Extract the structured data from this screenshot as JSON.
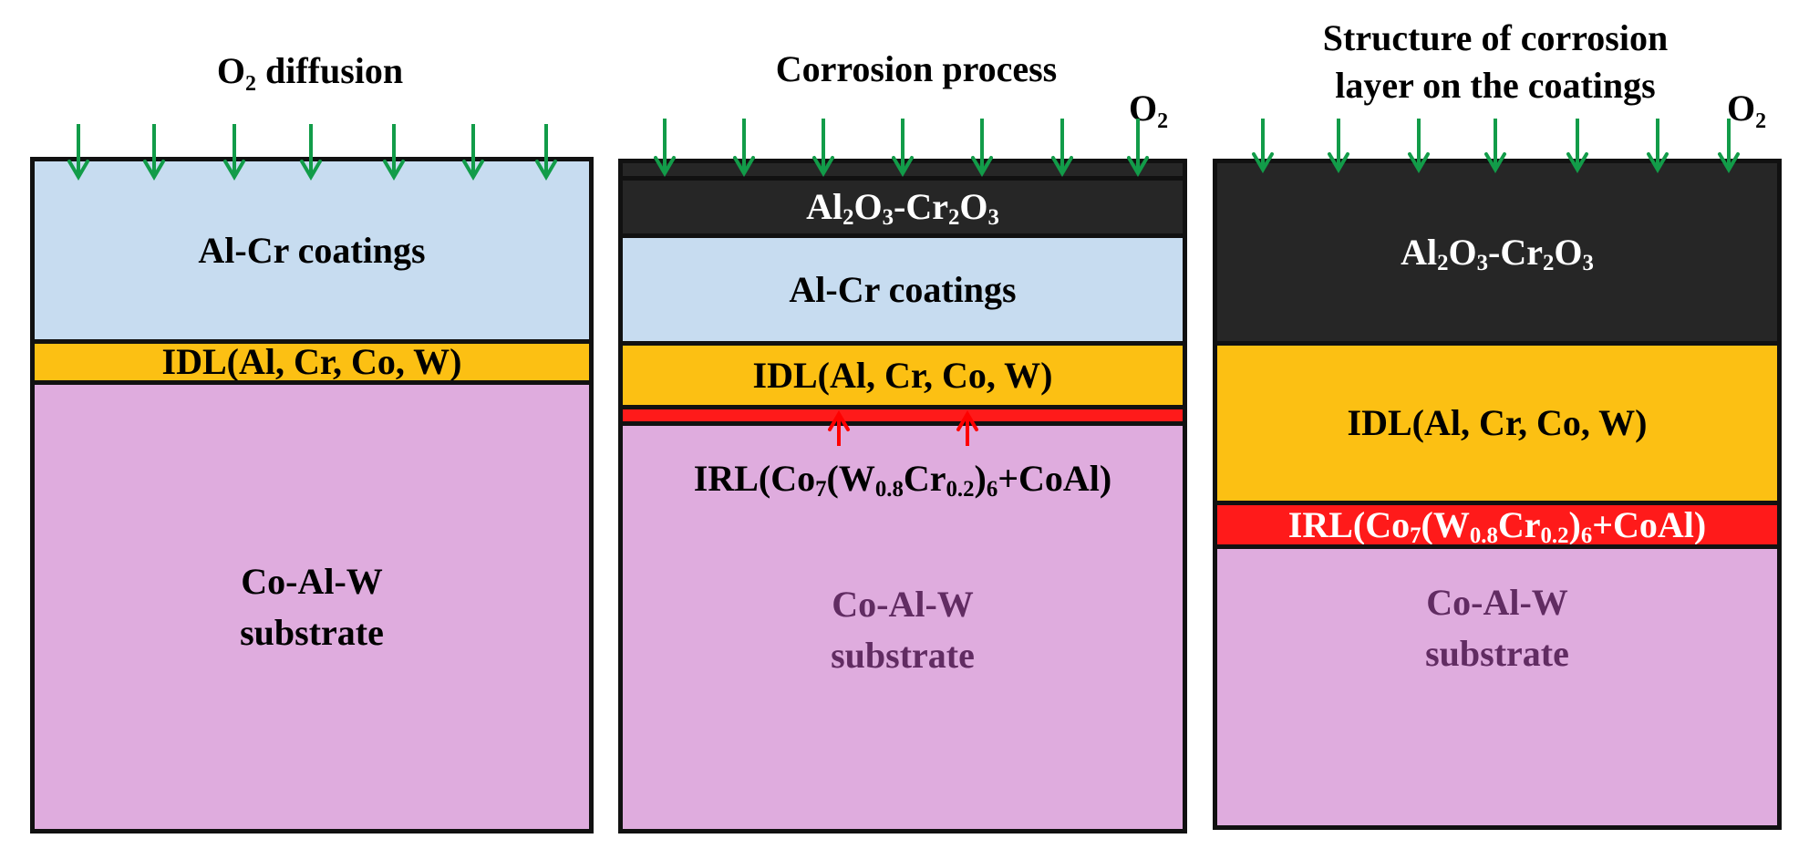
{
  "arrow_colors": {
    "oxygen": "#129c49",
    "diffusion": "#ff0000"
  },
  "panels": [
    {
      "title": "O₂ diffusion",
      "coating_label": "Al-Cr coatings",
      "idl_label": "IDL(Al, Cr, Co, W)",
      "substrate_line1": "Co-Al-W",
      "substrate_line2": "substrate"
    },
    {
      "title": "Corrosion process",
      "o2_label": "O₂",
      "oxide_label": "Al₂O₃-Cr₂O₃",
      "coating_label": "Al-Cr coatings",
      "idl_label": "IDL(Al, Cr, Co, W)",
      "irl_label": "IRL(Co₇(W₀.₈Cr₀.₂)₆+CoAl)",
      "substrate_line1": "Co-Al-W",
      "substrate_line2": "substrate"
    },
    {
      "title_line1": "Structure of corrosion",
      "title_line2": "layer on the coatings",
      "o2_label": "O₂",
      "oxide_label": "Al₂O₃-Cr₂O₃",
      "idl_label": "IDL(Al, Cr, Co, W)",
      "irl_label": "IRL(Co₇(W₀.₈Cr₀.₂)₆+CoAl)",
      "substrate_line1": "Co-Al-W",
      "substrate_line2": "substrate"
    }
  ]
}
